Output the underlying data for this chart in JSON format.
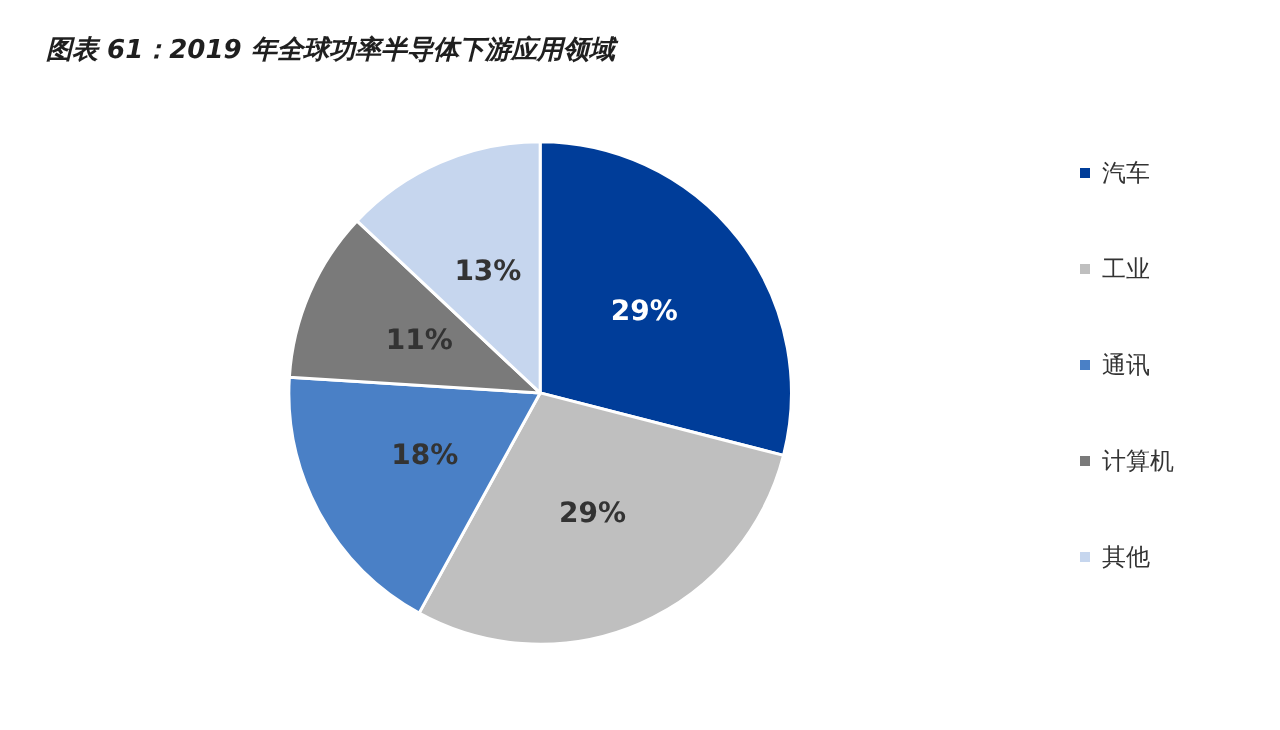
{
  "chart_data": {
    "type": "pie",
    "title": "图表 61：2019 年全球功率半导体下游应用领域",
    "categories": [
      "汽车",
      "工业",
      "通讯",
      "计算机",
      "其他"
    ],
    "values": [
      29,
      29,
      18,
      11,
      13
    ],
    "value_labels": [
      "29%",
      "29%",
      "18%",
      "11%",
      "13%"
    ],
    "colors": [
      "#003d99",
      "#bfbfbf",
      "#4a80c6",
      "#7a7a7a",
      "#c6d6ee"
    ],
    "legend": "right"
  }
}
